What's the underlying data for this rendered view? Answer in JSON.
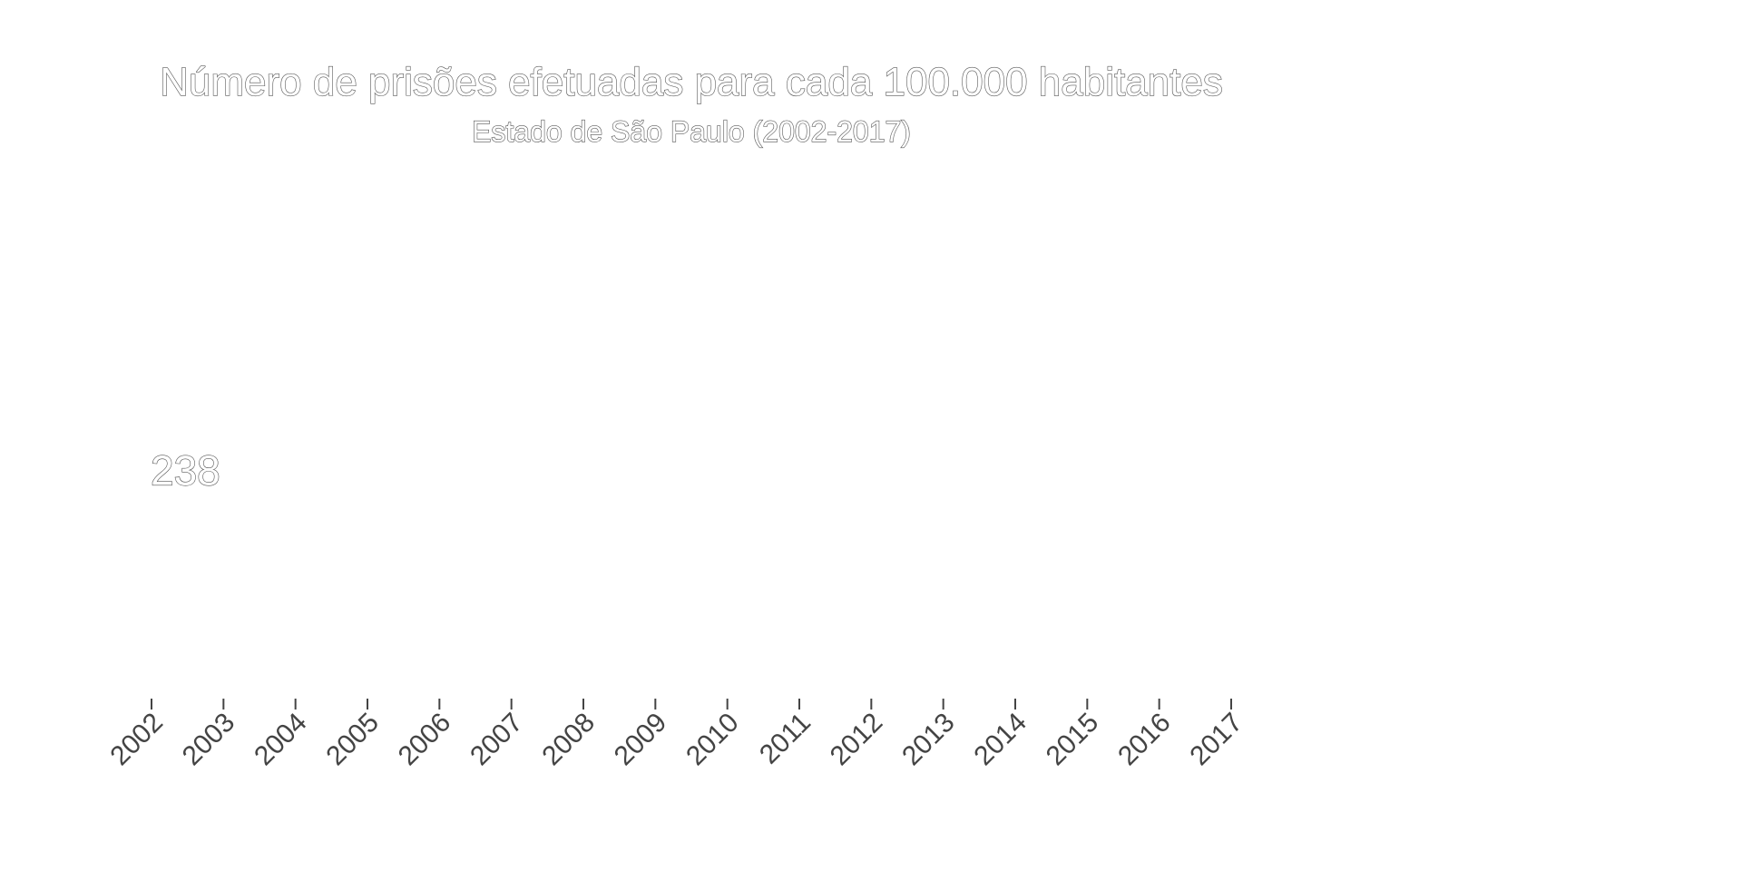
{
  "chart_data": {
    "type": "line",
    "title": "Número de prisões efetuadas para cada 100.000 habitantes",
    "subtitle": "Estado de São Paulo (2002-2017)",
    "xlabel": "",
    "ylabel": "",
    "categories": [
      "2002",
      "2003",
      "2004",
      "2005",
      "2006",
      "2007",
      "2008",
      "2009",
      "2010",
      "2011",
      "2012",
      "2013",
      "2014",
      "2015",
      "2016",
      "2017"
    ],
    "series": [
      {
        "values": [
          238,
          null,
          null,
          null,
          null,
          null,
          null,
          null,
          null,
          null,
          null,
          null,
          null,
          null,
          null,
          null
        ]
      }
    ],
    "data_labels": [
      {
        "category": "2002",
        "text": "238"
      }
    ],
    "grid": false,
    "legend": "none"
  }
}
